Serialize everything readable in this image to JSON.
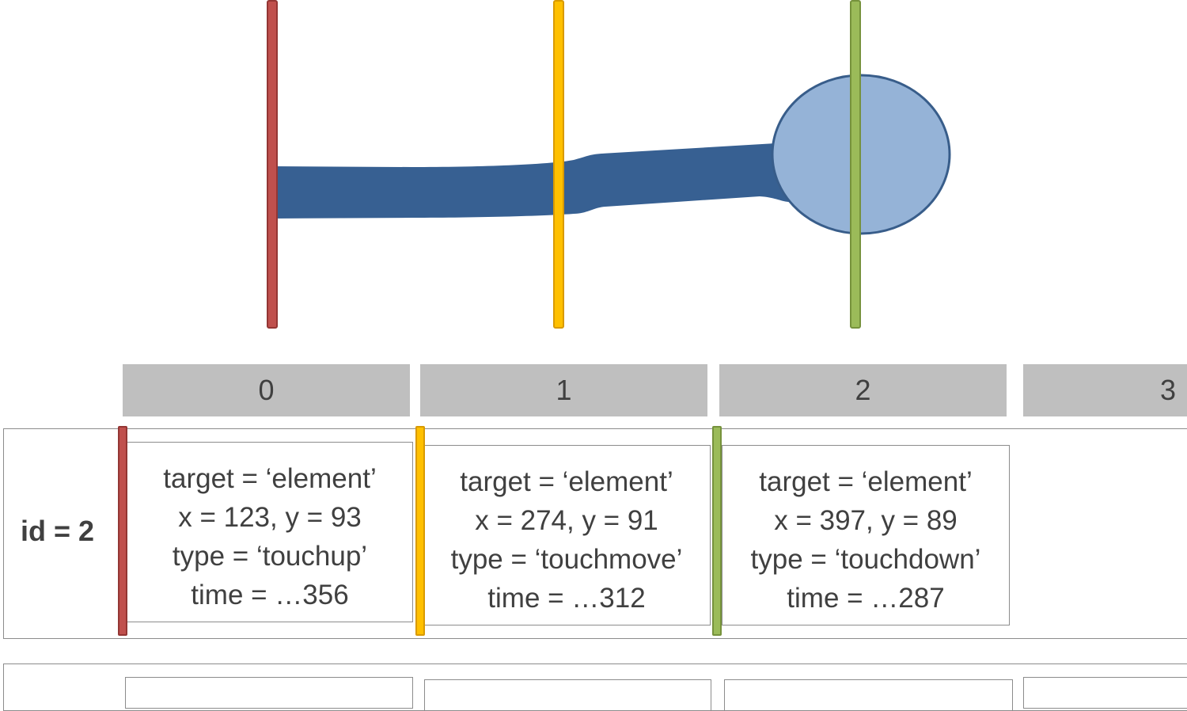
{
  "indices": [
    "0",
    "1",
    "2",
    "3"
  ],
  "row": {
    "label": "id = 2",
    "events": [
      {
        "target": "target = ‘element’",
        "xy": "x = 123, y = 93",
        "type": "type = ‘touchup’",
        "time": "time = …356",
        "marker_color": "#c0504d"
      },
      {
        "target": "target = ‘element’",
        "xy": "x = 274, y = 91",
        "type": "type = ‘touchmove’",
        "time": "time = …312",
        "marker_color": "#ffc000"
      },
      {
        "target": "target = ‘element’",
        "xy": "x = 397, y = 89",
        "type": "type = ‘touchdown’",
        "time": "time = …287",
        "marker_color": "#9bbb59"
      }
    ]
  },
  "colors": {
    "stroke": "#376092",
    "touch_fill": "#95b3d7",
    "touch_outline": "#385d8a",
    "index_bg": "#bfbfbf",
    "text": "#404040"
  }
}
